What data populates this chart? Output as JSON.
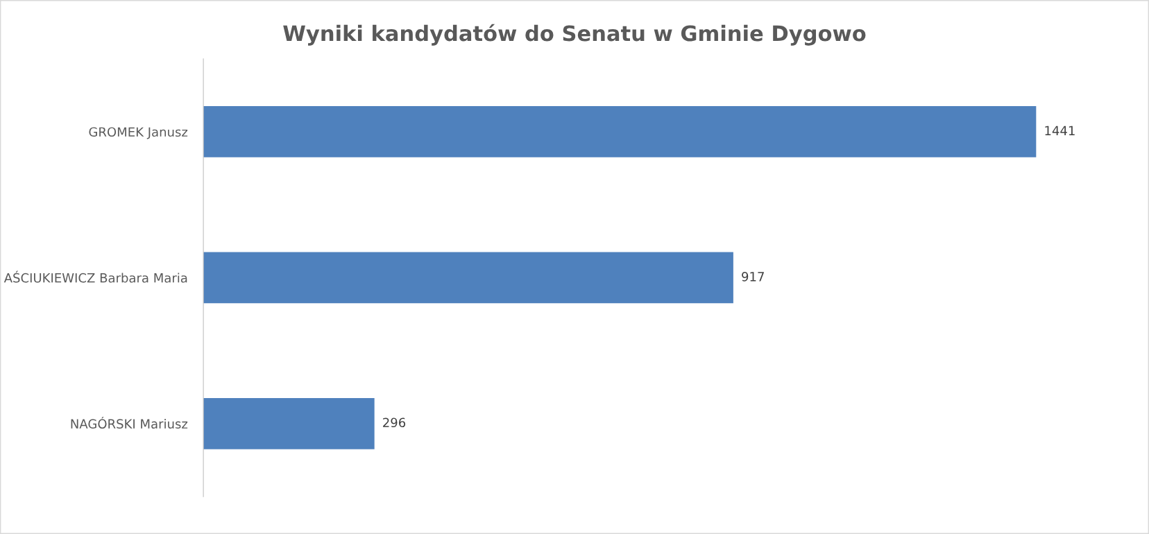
{
  "chart_data": {
    "type": "bar",
    "orientation": "horizontal",
    "title": "Wyniki kandydatów do Senatu w Gminie Dygowo",
    "categories": [
      "GROMEK Janusz",
      "AŚCIUKIEWICZ Barbara Maria",
      "NAGÓRSKI Mariusz"
    ],
    "values": [
      1441,
      917,
      296
    ],
    "color": "#4f81bd",
    "data_labels": true,
    "grid": false,
    "legend": false
  }
}
